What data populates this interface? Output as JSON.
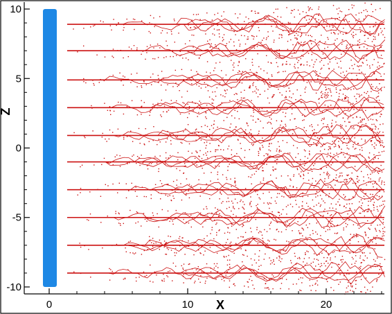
{
  "chart_data": {
    "type": "scatter",
    "xlabel": "X",
    "ylabel": "Z",
    "xlim": [
      -1.8,
      24.2
    ],
    "ylim": [
      -10.5,
      10.5
    ],
    "x_ticks": [
      0,
      10,
      20
    ],
    "y_ticks": [
      10,
      5,
      0,
      -5,
      -10
    ],
    "x_tick_labels": [
      "0",
      "10",
      "20"
    ],
    "y_tick_labels": [
      "10",
      "5",
      "0",
      "-5",
      "-10"
    ],
    "grid": false,
    "legend": "none",
    "plate": {
      "x": 0,
      "z_min": -10,
      "z_max": 10,
      "color": "#1e88e5"
    },
    "streak_color": "#cc1111",
    "streak_z": [
      8.9,
      7.0,
      4.9,
      2.9,
      0.9,
      -1.0,
      -3.0,
      -5.0,
      -7.0,
      -9.0
    ],
    "streak_x_start": 1.3,
    "streak_x_end": 24.2
  }
}
